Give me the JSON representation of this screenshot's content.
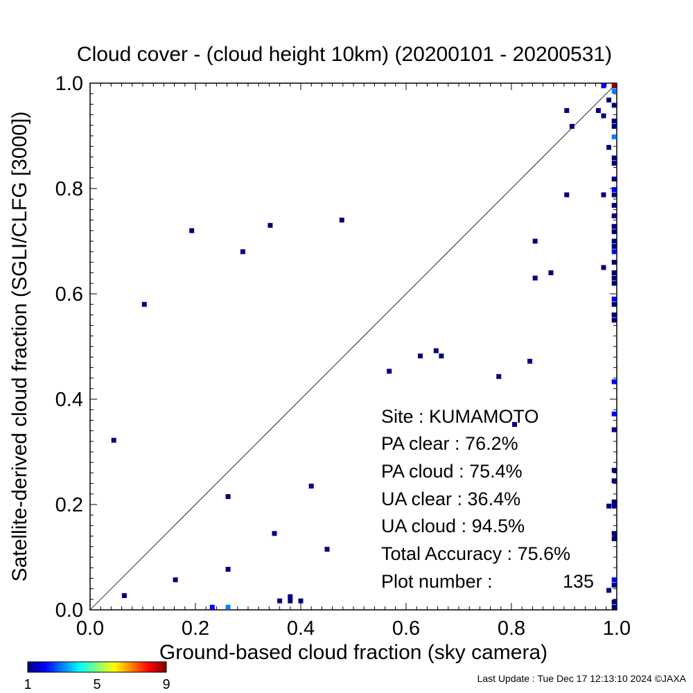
{
  "chart_data": {
    "type": "scatter",
    "title": "Cloud cover - (cloud height 10km)  (20200101 - 20200531)",
    "xlabel": "Ground-based cloud fraction (sky camera)",
    "ylabel": "Satellite-derived cloud fraction (SGLI/CLFG [3000])",
    "xlim": [
      0.0,
      1.0
    ],
    "ylim": [
      0.0,
      1.0
    ],
    "x_ticks": [
      "0.0",
      "0.2",
      "0.4",
      "0.6",
      "0.8",
      "1.0"
    ],
    "y_ticks": [
      "0.0",
      "0.2",
      "0.4",
      "0.6",
      "0.8",
      "1.0"
    ],
    "grid": false,
    "reference_line": "y = x",
    "colorbar": {
      "min": 1,
      "max": 9,
      "tick_labels": [
        "1",
        "5",
        "9"
      ],
      "colors": [
        "#00007f",
        "#0000ff",
        "#0080ff",
        "#00ffff",
        "#80ff80",
        "#ffff00",
        "#ff8000",
        "#ff0000",
        "#7f0000"
      ]
    },
    "points": [
      {
        "x": 0.045,
        "y": 0.322,
        "count": 1
      },
      {
        "x": 0.065,
        "y": 0.027,
        "count": 1
      },
      {
        "x": 0.103,
        "y": 0.58,
        "count": 1
      },
      {
        "x": 0.162,
        "y": 0.057,
        "count": 1
      },
      {
        "x": 0.193,
        "y": 0.72,
        "count": 1
      },
      {
        "x": 0.232,
        "y": 0.005,
        "count": 2
      },
      {
        "x": 0.262,
        "y": 0.215,
        "count": 1
      },
      {
        "x": 0.262,
        "y": 0.077,
        "count": 1
      },
      {
        "x": 0.262,
        "y": 0.005,
        "count": 3
      },
      {
        "x": 0.29,
        "y": 0.68,
        "count": 1
      },
      {
        "x": 0.342,
        "y": 0.73,
        "count": 1
      },
      {
        "x": 0.35,
        "y": 0.145,
        "count": 1
      },
      {
        "x": 0.36,
        "y": 0.017,
        "count": 1
      },
      {
        "x": 0.38,
        "y": 0.025,
        "count": 1
      },
      {
        "x": 0.38,
        "y": 0.017,
        "count": 1
      },
      {
        "x": 0.4,
        "y": 0.017,
        "count": 1
      },
      {
        "x": 0.42,
        "y": 0.235,
        "count": 1
      },
      {
        "x": 0.45,
        "y": 0.115,
        "count": 1
      },
      {
        "x": 0.478,
        "y": 0.74,
        "count": 1
      },
      {
        "x": 0.568,
        "y": 0.453,
        "count": 1
      },
      {
        "x": 0.627,
        "y": 0.482,
        "count": 1
      },
      {
        "x": 0.657,
        "y": 0.492,
        "count": 1
      },
      {
        "x": 0.667,
        "y": 0.482,
        "count": 1
      },
      {
        "x": 0.776,
        "y": 0.443,
        "count": 1
      },
      {
        "x": 0.806,
        "y": 0.352,
        "count": 1
      },
      {
        "x": 0.835,
        "y": 0.472,
        "count": 1
      },
      {
        "x": 0.845,
        "y": 0.7,
        "count": 1
      },
      {
        "x": 0.845,
        "y": 0.63,
        "count": 1
      },
      {
        "x": 0.875,
        "y": 0.64,
        "count": 1
      },
      {
        "x": 0.905,
        "y": 0.948,
        "count": 1
      },
      {
        "x": 0.905,
        "y": 0.788,
        "count": 1
      },
      {
        "x": 0.915,
        "y": 0.918,
        "count": 1
      },
      {
        "x": 0.965,
        "y": 0.948,
        "count": 1
      },
      {
        "x": 0.975,
        "y": 0.938,
        "count": 1
      },
      {
        "x": 0.975,
        "y": 0.788,
        "count": 1
      },
      {
        "x": 0.975,
        "y": 0.65,
        "count": 1
      },
      {
        "x": 0.975,
        "y": 0.995,
        "count": 2
      },
      {
        "x": 0.985,
        "y": 0.968,
        "count": 1
      },
      {
        "x": 0.985,
        "y": 0.878,
        "count": 1
      },
      {
        "x": 0.985,
        "y": 0.197,
        "count": 1
      },
      {
        "x": 0.985,
        "y": 0.037,
        "count": 1
      },
      {
        "x": 0.995,
        "y": 0.995,
        "count": 9
      },
      {
        "x": 0.995,
        "y": 0.985,
        "count": 3
      },
      {
        "x": 0.995,
        "y": 0.958,
        "count": 1
      },
      {
        "x": 0.995,
        "y": 0.928,
        "count": 1
      },
      {
        "x": 0.995,
        "y": 0.918,
        "count": 1
      },
      {
        "x": 0.995,
        "y": 0.898,
        "count": 3
      },
      {
        "x": 0.995,
        "y": 0.858,
        "count": 1
      },
      {
        "x": 0.995,
        "y": 0.848,
        "count": 1
      },
      {
        "x": 0.995,
        "y": 0.818,
        "count": 1
      },
      {
        "x": 0.995,
        "y": 0.798,
        "count": 2
      },
      {
        "x": 0.995,
        "y": 0.788,
        "count": 1
      },
      {
        "x": 0.995,
        "y": 0.768,
        "count": 1
      },
      {
        "x": 0.995,
        "y": 0.748,
        "count": 1
      },
      {
        "x": 0.995,
        "y": 0.728,
        "count": 1
      },
      {
        "x": 0.995,
        "y": 0.718,
        "count": 1
      },
      {
        "x": 0.995,
        "y": 0.7,
        "count": 1
      },
      {
        "x": 0.995,
        "y": 0.69,
        "count": 1
      },
      {
        "x": 0.995,
        "y": 0.68,
        "count": 2
      },
      {
        "x": 0.995,
        "y": 0.66,
        "count": 1
      },
      {
        "x": 0.995,
        "y": 0.64,
        "count": 1
      },
      {
        "x": 0.995,
        "y": 0.63,
        "count": 1
      },
      {
        "x": 0.995,
        "y": 0.62,
        "count": 1
      },
      {
        "x": 0.995,
        "y": 0.59,
        "count": 2
      },
      {
        "x": 0.995,
        "y": 0.58,
        "count": 1
      },
      {
        "x": 0.995,
        "y": 0.56,
        "count": 1
      },
      {
        "x": 0.995,
        "y": 0.55,
        "count": 1
      },
      {
        "x": 0.995,
        "y": 0.433,
        "count": 2
      },
      {
        "x": 0.995,
        "y": 0.372,
        "count": 2
      },
      {
        "x": 0.995,
        "y": 0.342,
        "count": 1
      },
      {
        "x": 0.995,
        "y": 0.265,
        "count": 1
      },
      {
        "x": 0.995,
        "y": 0.245,
        "count": 1
      },
      {
        "x": 0.995,
        "y": 0.205,
        "count": 1
      },
      {
        "x": 0.995,
        "y": 0.197,
        "count": 1
      },
      {
        "x": 0.995,
        "y": 0.145,
        "count": 1
      },
      {
        "x": 0.995,
        "y": 0.135,
        "count": 1
      },
      {
        "x": 0.995,
        "y": 0.057,
        "count": 2
      },
      {
        "x": 0.995,
        "y": 0.047,
        "count": 1
      },
      {
        "x": 0.995,
        "y": 0.015,
        "count": 1
      },
      {
        "x": 0.995,
        "y": 0.005,
        "count": 1
      }
    ]
  },
  "stats": {
    "site": "Site : KUMAMOTO",
    "pa_clear": "PA clear :  76.2%",
    "pa_cloud": "PA cloud :  75.4%",
    "ua_clear": "UA clear :  36.4%",
    "ua_cloud": "UA cloud :  94.5%",
    "total_accuracy": "Total Accuracy :  75.6%",
    "plot_number_label": "Plot number :",
    "plot_number_value": "135"
  },
  "footer": {
    "last_update": "Last Update : Tue Dec 17 12:13:10 2024  ©JAXA"
  }
}
